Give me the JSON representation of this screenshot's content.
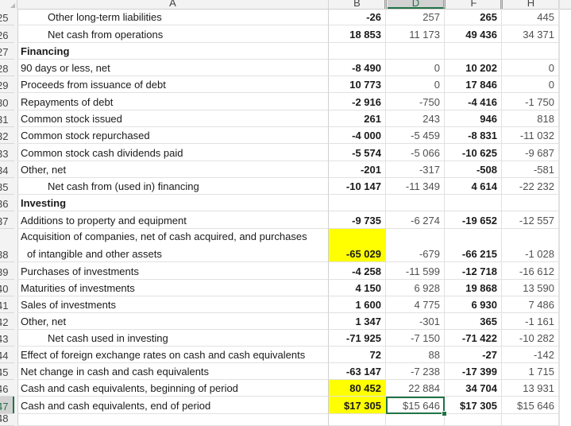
{
  "columns": [
    {
      "id": "A",
      "label": "A"
    },
    {
      "id": "B",
      "label": "B"
    },
    {
      "id": "D",
      "label": "D"
    },
    {
      "id": "F",
      "label": "F"
    },
    {
      "id": "H",
      "label": "H"
    }
  ],
  "selected_cell": "D47",
  "highlight_color": "#ffff00",
  "selection_color": "#217346",
  "rows": [
    {
      "n": "25",
      "a": "Other long-term liabilities",
      "b": "-26",
      "d": "257",
      "f": "265",
      "h": "445"
    },
    {
      "n": "26",
      "a": "Net cash from operations",
      "b": "18 853",
      "d": "11 173",
      "f": "49 436",
      "h": "34 371"
    },
    {
      "n": "27",
      "a": "Financing",
      "b": "",
      "d": "",
      "f": "",
      "h": ""
    },
    {
      "n": "28",
      "a": "90 days or less, net",
      "b": "-8 490",
      "d": "0",
      "f": "10 202",
      "h": "0"
    },
    {
      "n": "29",
      "a": "Proceeds from issuance of debt",
      "b": "10 773",
      "d": "0",
      "f": "17 846",
      "h": "0"
    },
    {
      "n": "30",
      "a": "Repayments of debt",
      "b": "-2 916",
      "d": "-750",
      "f": "-4 416",
      "h": "-1 750"
    },
    {
      "n": "31",
      "a": "Common stock issued",
      "b": "261",
      "d": "243",
      "f": "946",
      "h": "818"
    },
    {
      "n": "32",
      "a": "Common stock repurchased",
      "b": "-4 000",
      "d": "-5 459",
      "f": "-8 831",
      "h": "-11 032"
    },
    {
      "n": "33",
      "a": "Common stock cash dividends paid",
      "b": "-5 574",
      "d": "-5 066",
      "f": "-10 625",
      "h": "-9 687"
    },
    {
      "n": "34",
      "a": "Other, net",
      "b": "-201",
      "d": "-317",
      "f": "-508",
      "h": "-581"
    },
    {
      "n": "35",
      "a": "Net cash from (used in) financing",
      "b": "-10 147",
      "d": "-11 349",
      "f": "4 614",
      "h": "-22 232"
    },
    {
      "n": "36",
      "a": "Investing",
      "b": "",
      "d": "",
      "f": "",
      "h": ""
    },
    {
      "n": "37",
      "a": "Additions to property and equipment",
      "b": "-9 735",
      "d": "-6 274",
      "f": "-19 652",
      "h": "-12 557"
    },
    {
      "n": "38",
      "a": "Acquisition of companies, net of cash acquired, and purchases",
      "a2": "of intangible and other assets",
      "b": "-65 029",
      "d": "-679",
      "f": "-66 215",
      "h": "-1 028"
    },
    {
      "n": "39",
      "a": "Purchases of investments",
      "b": "-4 258",
      "d": "-11 599",
      "f": "-12 718",
      "h": "-16 612"
    },
    {
      "n": "40",
      "a": "Maturities of investments",
      "b": "4 150",
      "d": "6 928",
      "f": "19 868",
      "h": "13 590"
    },
    {
      "n": "41",
      "a": "Sales of investments",
      "b": "1 600",
      "d": "4 775",
      "f": "6 930",
      "h": "7 486"
    },
    {
      "n": "42",
      "a": "Other, net",
      "b": "1 347",
      "d": "-301",
      "f": "365",
      "h": "-1 161"
    },
    {
      "n": "43",
      "a": "Net cash used in investing",
      "b": "-71 925",
      "d": "-7 150",
      "f": "-71 422",
      "h": "-10 282"
    },
    {
      "n": "44",
      "a": "Effect of foreign exchange rates on cash and cash equivalents",
      "b": "72",
      "d": "88",
      "f": "-27",
      "h": "-142"
    },
    {
      "n": "45",
      "a": "Net change in cash and cash equivalents",
      "b": "-63 147",
      "d": "-7 238",
      "f": "-17 399",
      "h": "1 715"
    },
    {
      "n": "46",
      "a": "Cash and cash equivalents, beginning of period",
      "b": "80 452",
      "d": "22 884",
      "f": "34 704",
      "h": "13 931"
    },
    {
      "n": "47",
      "a": "Cash and cash equivalents, end of period",
      "b": "$17 305",
      "d": "$15 646",
      "f": "$17 305",
      "h": "$15 646"
    },
    {
      "n": "48",
      "a": "",
      "b": "",
      "d": "",
      "f": "",
      "h": ""
    }
  ]
}
